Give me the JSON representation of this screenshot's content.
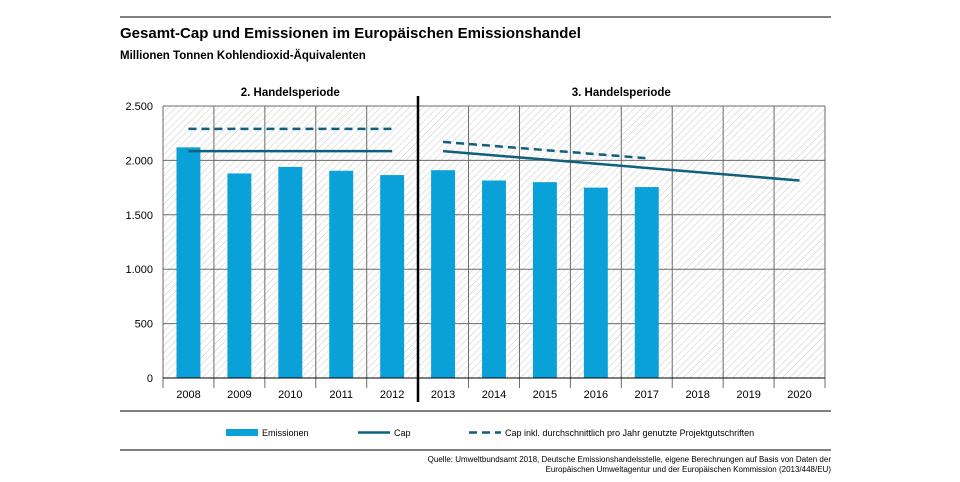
{
  "header": {
    "title": "Gesamt-Cap und Emissionen im Europäischen Emissionshandel",
    "subtitle": "Millionen Tonnen Kohlendioxid-Äquivalenten"
  },
  "chart_data": {
    "type": "bar",
    "categories": [
      "2008",
      "2009",
      "2010",
      "2011",
      "2012",
      "2013",
      "2014",
      "2015",
      "2016",
      "2017",
      "2018",
      "2019",
      "2020"
    ],
    "ylim": [
      0,
      2500
    ],
    "yticks": [
      0,
      500,
      1000,
      1500,
      2000,
      2500
    ],
    "ytick_labels": [
      "0",
      "500",
      "1.000",
      "1.500",
      "2.000",
      "2.500"
    ],
    "grid": true,
    "periods": [
      {
        "label": "2. Handelsperiode",
        "categories": [
          "2008",
          "2009",
          "2010",
          "2011",
          "2012"
        ]
      },
      {
        "label": "3. Handelsperiode",
        "categories": [
          "2013",
          "2014",
          "2015",
          "2016",
          "2017",
          "2018",
          "2019",
          "2020"
        ]
      }
    ],
    "series": [
      {
        "name": "Emissionen",
        "type": "bar",
        "color": "#0aa0d8",
        "values": [
          2120,
          1880,
          1940,
          1905,
          1865,
          1910,
          1815,
          1800,
          1750,
          1755,
          null,
          null,
          null
        ]
      },
      {
        "name": "Cap",
        "type": "line",
        "color": "#0f5f7d",
        "segments": [
          {
            "x": [
              "2008",
              "2012"
            ],
            "y": [
              2085,
              2085
            ]
          },
          {
            "x": [
              "2013",
              "2020"
            ],
            "y": [
              2085,
              1815
            ]
          }
        ]
      },
      {
        "name": "Cap inkl. durchschnittlich pro Jahr genutzte Projektgutschriften",
        "type": "line-dashed",
        "color": "#0f5f7d",
        "segments": [
          {
            "x": [
              "2008",
              "2012"
            ],
            "y": [
              2290,
              2290
            ]
          },
          {
            "x": [
              "2013",
              "2017"
            ],
            "y": [
              2170,
              2020
            ]
          }
        ]
      }
    ],
    "legend": {
      "position": "bottom"
    }
  },
  "footer": {
    "source_line1": "Quelle: Umweltbundsamt 2018, Deutsche Emissionshandelsstelle, eigene Berechnungen auf Basis von Daten der",
    "source_line2": "Europäischen Umweltagentur und der Europäischen Kommission (2013/448/EU)"
  }
}
